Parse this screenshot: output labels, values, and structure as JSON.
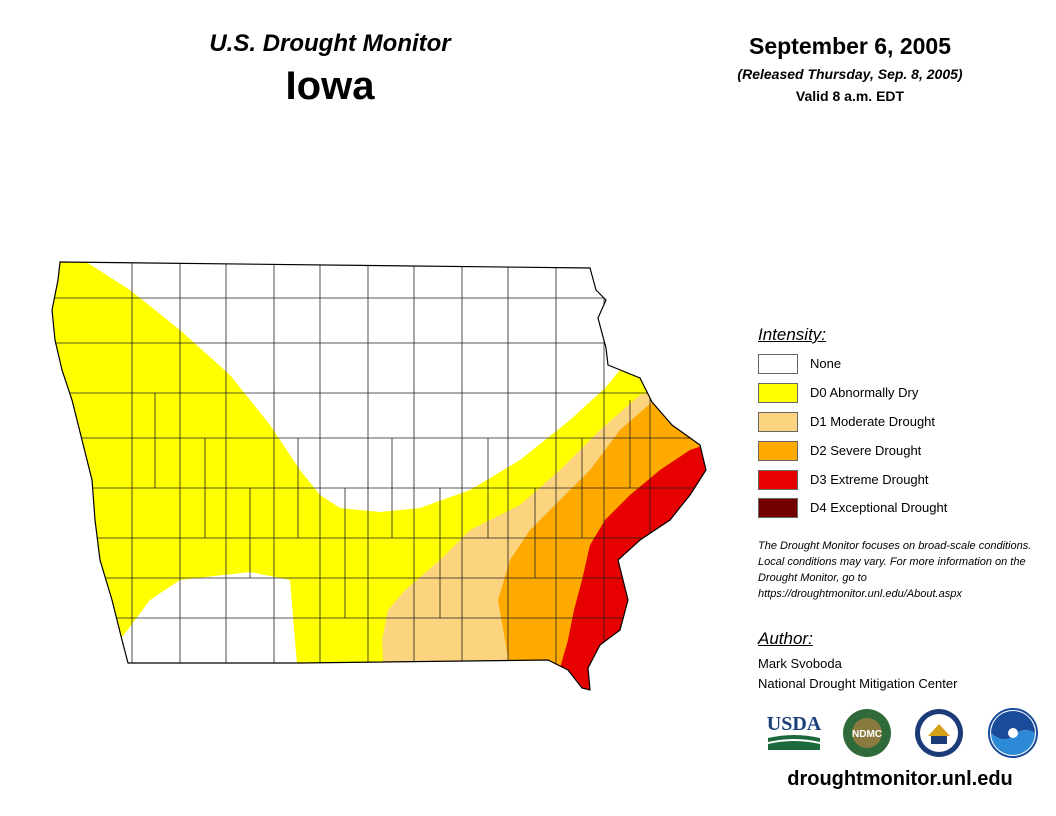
{
  "header": {
    "monitor_title": "U.S. Drought Monitor",
    "state": "Iowa",
    "date": "September 6, 2005",
    "released": "(Released Thursday, Sep. 8, 2005)",
    "valid": "Valid 8 a.m. EDT"
  },
  "legend": {
    "title": "Intensity:",
    "items": [
      {
        "label": "None",
        "color": "#ffffff"
      },
      {
        "label": "D0 Abnormally Dry",
        "color": "#ffff00"
      },
      {
        "label": "D1 Moderate Drought",
        "color": "#fcd37f"
      },
      {
        "label": "D2 Severe Drought",
        "color": "#ffaa00"
      },
      {
        "label": "D3 Extreme Drought",
        "color": "#e60000"
      },
      {
        "label": "D4 Exceptional Drought",
        "color": "#730000"
      }
    ]
  },
  "note": "The Drought Monitor focuses on broad-scale conditions. Local conditions may vary. For more information on the Drought Monitor, go to https://droughtmonitor.unl.edu/About.aspx",
  "author": {
    "title": "Author:",
    "name": "Mark Svoboda",
    "organization": "National Drought Mitigation Center"
  },
  "logos": [
    "USDA",
    "NDMC",
    "Department of Commerce seal",
    "NOAA"
  ],
  "website": "droughtmonitor.unl.edu"
}
